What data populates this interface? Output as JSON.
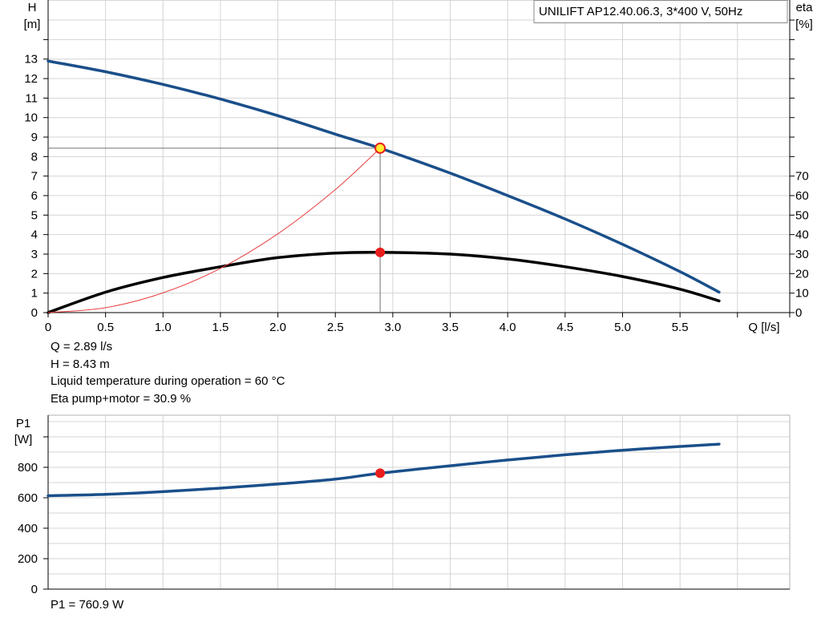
{
  "chart_data": [
    {
      "type": "line",
      "title": "UNILIFT AP12.40.06.3, 3*400 V, 50Hz",
      "xlabel": "Q [l/s]",
      "ylabel": {
        "name": "H",
        "unit": "[m]"
      },
      "y2label": {
        "name": "eta",
        "unit": "[%]"
      },
      "xlim": [
        0,
        6.0
      ],
      "ylim": [
        0,
        14.5
      ],
      "y2lim": [
        0,
        80
      ],
      "xticks": [
        "0",
        "0.5",
        "1.0",
        "1.5",
        "2.0",
        "2.5",
        "3.0",
        "3.5",
        "4.0",
        "4.5",
        "5.0",
        "5.5"
      ],
      "yticks": [
        "0",
        "1",
        "2",
        "3",
        "4",
        "5",
        "6",
        "7",
        "8",
        "9",
        "10",
        "11",
        "12",
        "13"
      ],
      "y2ticks": [
        "0",
        "10",
        "20",
        "30",
        "40",
        "50",
        "60",
        "70"
      ],
      "grid": true,
      "series": [
        {
          "name": "H",
          "axis": "y",
          "color": "#1a4f8a",
          "x": [
            0,
            0.5,
            1.0,
            1.5,
            2.0,
            2.5,
            2.89,
            3.5,
            4.0,
            4.5,
            5.0,
            5.5,
            5.84
          ],
          "y": [
            12.9,
            12.35,
            11.7,
            10.95,
            10.1,
            9.15,
            8.43,
            7.15,
            6.0,
            4.8,
            3.5,
            2.1,
            1.05
          ]
        },
        {
          "name": "eta",
          "axis": "y2",
          "color": "#000000",
          "x": [
            0,
            0.5,
            1.0,
            1.5,
            2.0,
            2.5,
            2.89,
            3.5,
            4.0,
            4.5,
            5.0,
            5.5,
            5.84
          ],
          "y": [
            0,
            10.5,
            18,
            23.5,
            28.2,
            30.5,
            30.9,
            30.0,
            27.5,
            23.5,
            18.5,
            12,
            6
          ]
        },
        {
          "name": "system-curve",
          "axis": "y",
          "color": "#e84040",
          "x": [
            0,
            0.5,
            1.0,
            1.5,
            2.0,
            2.5,
            2.89
          ],
          "y": [
            0,
            0.25,
            1.01,
            2.27,
            4.04,
            6.31,
            8.43
          ]
        }
      ],
      "duty_point": {
        "x": 2.89,
        "h": 8.43,
        "eta": 30.9
      }
    },
    {
      "type": "line",
      "xlabel": "",
      "ylabel": {
        "name": "P1",
        "unit": "[W]"
      },
      "xlim": [
        0,
        6.0
      ],
      "ylim": [
        0,
        1080
      ],
      "yticks": [
        "0",
        "200",
        "400",
        "600",
        "800"
      ],
      "grid": true,
      "series": [
        {
          "name": "P1",
          "color": "#1a4f8a",
          "x": [
            0,
            0.5,
            1.0,
            1.5,
            2.0,
            2.5,
            2.89,
            3.5,
            4.0,
            4.5,
            5.0,
            5.5,
            5.84
          ],
          "y": [
            613,
            622,
            640,
            663,
            690,
            722,
            760.9,
            810,
            848,
            882,
            912,
            937,
            952
          ]
        }
      ],
      "duty_point": {
        "x": 2.89,
        "p1": 760.9
      }
    }
  ],
  "info": {
    "q": "Q = 2.89 l/s",
    "h": "H = 8.43 m",
    "temp": "Liquid temperature during operation = 60 °C",
    "eta": "Eta pump+motor = 30.9 %",
    "p1": "P1 = 760.9 W"
  },
  "colors": {
    "grid": "#d4d4d4",
    "frame": "#b0b0b0",
    "duty_red": "#e81e1e",
    "duty_yellow": "#ffee33"
  }
}
